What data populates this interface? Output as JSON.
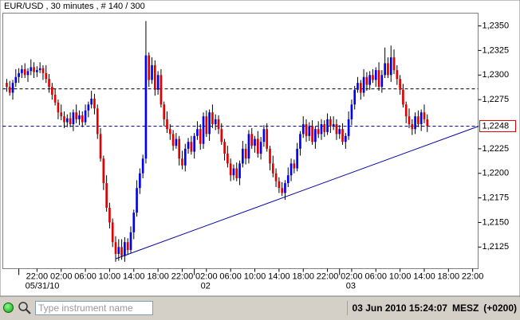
{
  "chart_data": {
    "type": "candlestick",
    "title": "EUR/USD , 30 minutes , # 140 / 300",
    "up_color": "#0000ee",
    "down_color": "#e00000",
    "wick_color": "#000000",
    "xlim": [
      -1.3,
      155.8
    ],
    "ylim": [
      1.2103,
      1.2363
    ],
    "yticks": [
      {
        "value": 1.2125,
        "label": "1,2125"
      },
      {
        "value": 1.215,
        "label": "1,2150"
      },
      {
        "value": 1.2175,
        "label": "1,2175"
      },
      {
        "value": 1.22,
        "label": "1,2200"
      },
      {
        "value": 1.2225,
        "label": "1,2225"
      },
      {
        "value": 1.2275,
        "label": "1,2275"
      },
      {
        "value": 1.23,
        "label": "1,2300"
      },
      {
        "value": 1.2325,
        "label": "1,2325"
      },
      {
        "value": 1.235,
        "label": "1,2350"
      }
    ],
    "xticks": [
      {
        "value": 10,
        "label": "22:00"
      },
      {
        "value": 18,
        "label": "02:00"
      },
      {
        "value": 26,
        "label": "06:00"
      },
      {
        "value": 34,
        "label": "10:00"
      },
      {
        "value": 42,
        "label": "14:00"
      },
      {
        "value": 50,
        "label": "18:00"
      },
      {
        "value": 58,
        "label": "22:00"
      },
      {
        "value": 66,
        "label": "02:00"
      },
      {
        "value": 74,
        "label": "06:00"
      },
      {
        "value": 82,
        "label": "10:00"
      },
      {
        "value": 90,
        "label": "14:00"
      },
      {
        "value": 98,
        "label": "18:00"
      },
      {
        "value": 106,
        "label": "22:00"
      },
      {
        "value": 114,
        "label": "02:00"
      },
      {
        "value": 122,
        "label": "06:00"
      },
      {
        "value": 130,
        "label": "10:00"
      },
      {
        "value": 138,
        "label": "14:00"
      },
      {
        "value": 146,
        "label": "18:00"
      },
      {
        "value": 154,
        "label": "22:00"
      }
    ],
    "date_ticks": [
      {
        "value": 4,
        "label": "05/31/10"
      },
      {
        "value": 62,
        "label": "02"
      },
      {
        "value": 110,
        "label": "03"
      }
    ],
    "hlines": [
      {
        "value": 1.2286,
        "color": "#000000"
      },
      {
        "value": 1.2248,
        "color": "#0000aa"
      }
    ],
    "last_price": {
      "value": 1.2248,
      "label": "1,2248"
    },
    "trendline": {
      "x": [
        36,
        156
      ],
      "y": [
        1.2113,
        1.2248
      ],
      "color": "#0000aa"
    },
    "ohlc": [
      [
        1.2292,
        1.2296,
        1.2283,
        1.2288
      ],
      [
        1.2288,
        1.2294,
        1.2279,
        1.2282
      ],
      [
        1.2282,
        1.2295,
        1.2275,
        1.2292
      ],
      [
        1.2292,
        1.2306,
        1.2288,
        1.2298
      ],
      [
        1.2298,
        1.2307,
        1.2292,
        1.2302
      ],
      [
        1.2302,
        1.231,
        1.2297,
        1.2306
      ],
      [
        1.2306,
        1.2312,
        1.2297,
        1.23
      ],
      [
        1.23,
        1.2307,
        1.2293,
        1.2304
      ],
      [
        1.2304,
        1.2316,
        1.23,
        1.2308
      ],
      [
        1.2308,
        1.2313,
        1.2297,
        1.2303
      ],
      [
        1.2303,
        1.2309,
        1.2298,
        1.2305
      ],
      [
        1.2305,
        1.2313,
        1.2302,
        1.2307
      ],
      [
        1.2307,
        1.231,
        1.2295,
        1.2302
      ],
      [
        1.2302,
        1.231,
        1.2292,
        1.2296
      ],
      [
        1.2296,
        1.2301,
        1.2282,
        1.2288
      ],
      [
        1.2288,
        1.2292,
        1.2275,
        1.228
      ],
      [
        1.228,
        1.2286,
        1.2269,
        1.2272
      ],
      [
        1.2272,
        1.2275,
        1.2255,
        1.2262
      ],
      [
        1.2262,
        1.227,
        1.2254,
        1.2258
      ],
      [
        1.2258,
        1.2263,
        1.2246,
        1.2252
      ],
      [
        1.2252,
        1.226,
        1.2247,
        1.2256
      ],
      [
        1.2256,
        1.2262,
        1.2247,
        1.225
      ],
      [
        1.225,
        1.2265,
        1.2243,
        1.2262
      ],
      [
        1.2262,
        1.227,
        1.2251,
        1.2255
      ],
      [
        1.2255,
        1.2264,
        1.2249,
        1.2259
      ],
      [
        1.2259,
        1.2263,
        1.2247,
        1.2252
      ],
      [
        1.2252,
        1.227,
        1.2249,
        1.2264
      ],
      [
        1.2264,
        1.2273,
        1.2257,
        1.227
      ],
      [
        1.227,
        1.2284,
        1.2266,
        1.2276
      ],
      [
        1.2276,
        1.2281,
        1.226,
        1.2266
      ],
      [
        1.2266,
        1.227,
        1.2235,
        1.224
      ],
      [
        1.224,
        1.2246,
        1.2212,
        1.2215
      ],
      [
        1.2215,
        1.2218,
        1.2183,
        1.219
      ],
      [
        1.219,
        1.2198,
        1.2161,
        1.2165
      ],
      [
        1.2165,
        1.217,
        1.2144,
        1.215
      ],
      [
        1.215,
        1.2154,
        1.2125,
        1.213
      ],
      [
        1.213,
        1.2136,
        1.211,
        1.2118
      ],
      [
        1.2118,
        1.2133,
        1.2111,
        1.2125
      ],
      [
        1.2125,
        1.2133,
        1.2112,
        1.2116
      ],
      [
        1.2116,
        1.2135,
        1.211,
        1.213
      ],
      [
        1.213,
        1.2134,
        1.2117,
        1.2122
      ],
      [
        1.2122,
        1.2146,
        1.2119,
        1.214
      ],
      [
        1.214,
        1.2163,
        1.2133,
        1.216
      ],
      [
        1.216,
        1.2193,
        1.2156,
        1.2185
      ],
      [
        1.2185,
        1.2205,
        1.2179,
        1.22
      ],
      [
        1.22,
        1.2219,
        1.2195,
        1.2215
      ],
      [
        1.2215,
        1.2355,
        1.221,
        1.232
      ],
      [
        1.232,
        1.2323,
        1.2288,
        1.2295
      ],
      [
        1.2295,
        1.2318,
        1.2291,
        1.231
      ],
      [
        1.231,
        1.2315,
        1.2279,
        1.2285
      ],
      [
        1.2285,
        1.2304,
        1.228,
        1.23
      ],
      [
        1.23,
        1.2306,
        1.2267,
        1.227
      ],
      [
        1.227,
        1.2273,
        1.2248,
        1.2255
      ],
      [
        1.2255,
        1.2263,
        1.2241,
        1.2245
      ],
      [
        1.2245,
        1.225,
        1.2234,
        1.224
      ],
      [
        1.224,
        1.2244,
        1.2223,
        1.2228
      ],
      [
        1.2228,
        1.2241,
        1.2225,
        1.2235
      ],
      [
        1.2235,
        1.2238,
        1.2208,
        1.2215
      ],
      [
        1.2215,
        1.2223,
        1.2204,
        1.2208
      ],
      [
        1.2208,
        1.223,
        1.2202,
        1.2225
      ],
      [
        1.2225,
        1.2236,
        1.222,
        1.2232
      ],
      [
        1.2232,
        1.2238,
        1.2219,
        1.2222
      ],
      [
        1.2222,
        1.2241,
        1.2215,
        1.2238
      ],
      [
        1.2238,
        1.2253,
        1.2234,
        1.2245
      ],
      [
        1.2245,
        1.225,
        1.2224,
        1.223
      ],
      [
        1.223,
        1.2262,
        1.2225,
        1.2258
      ],
      [
        1.2258,
        1.2264,
        1.2237,
        1.224
      ],
      [
        1.224,
        1.2265,
        1.2233,
        1.2262
      ],
      [
        1.2262,
        1.227,
        1.2246,
        1.225
      ],
      [
        1.225,
        1.226,
        1.2244,
        1.2255
      ],
      [
        1.2255,
        1.2259,
        1.224,
        1.2245
      ],
      [
        1.2245,
        1.2251,
        1.2229,
        1.2232
      ],
      [
        1.2232,
        1.2235,
        1.2213,
        1.222
      ],
      [
        1.222,
        1.2228,
        1.2206,
        1.221
      ],
      [
        1.221,
        1.2215,
        1.2192,
        1.2198
      ],
      [
        1.2198,
        1.2209,
        1.2193,
        1.2205
      ],
      [
        1.2205,
        1.2211,
        1.2192,
        1.2195
      ],
      [
        1.2195,
        1.2213,
        1.2188,
        1.221
      ],
      [
        1.221,
        1.2233,
        1.2206,
        1.2225
      ],
      [
        1.2225,
        1.223,
        1.2209,
        1.2215
      ],
      [
        1.2215,
        1.2244,
        1.221,
        1.224
      ],
      [
        1.224,
        1.2246,
        1.2225,
        1.2228
      ],
      [
        1.2228,
        1.2238,
        1.2221,
        1.2235
      ],
      [
        1.2235,
        1.2243,
        1.2216,
        1.222
      ],
      [
        1.222,
        1.2237,
        1.2214,
        1.2232
      ],
      [
        1.2232,
        1.2249,
        1.2227,
        1.2245
      ],
      [
        1.2245,
        1.2251,
        1.2222,
        1.2225
      ],
      [
        1.2225,
        1.2228,
        1.2203,
        1.221
      ],
      [
        1.221,
        1.2218,
        1.2196,
        1.22
      ],
      [
        1.22,
        1.2205,
        1.2186,
        1.2192
      ],
      [
        1.2192,
        1.2196,
        1.218,
        1.2185
      ],
      [
        1.2185,
        1.2191,
        1.2177,
        1.218
      ],
      [
        1.218,
        1.2193,
        1.2173,
        1.219
      ],
      [
        1.219,
        1.2206,
        1.2186,
        1.2198
      ],
      [
        1.2198,
        1.2215,
        1.2192,
        1.221
      ],
      [
        1.221,
        1.2214,
        1.22,
        1.2205
      ],
      [
        1.2205,
        1.2231,
        1.2202,
        1.2225
      ],
      [
        1.2225,
        1.2243,
        1.2218,
        1.224
      ],
      [
        1.224,
        1.2258,
        1.2236,
        1.225
      ],
      [
        1.225,
        1.2255,
        1.2232,
        1.2238
      ],
      [
        1.2238,
        1.2252,
        1.2233,
        1.2248
      ],
      [
        1.2248,
        1.2254,
        1.2229,
        1.2232
      ],
      [
        1.2232,
        1.2248,
        1.2225,
        1.2245
      ],
      [
        1.2245,
        1.2253,
        1.2236,
        1.224
      ],
      [
        1.224,
        1.2255,
        1.2234,
        1.225
      ],
      [
        1.225,
        1.2254,
        1.2237,
        1.2242
      ],
      [
        1.2242,
        1.2261,
        1.2239,
        1.2255
      ],
      [
        1.2255,
        1.2258,
        1.2241,
        1.2248
      ],
      [
        1.2248,
        1.2258,
        1.2244,
        1.225
      ],
      [
        1.225,
        1.2255,
        1.2234,
        1.224
      ],
      [
        1.224,
        1.2249,
        1.2235,
        1.2245
      ],
      [
        1.2245,
        1.2251,
        1.2229,
        1.2232
      ],
      [
        1.2232,
        1.2241,
        1.2225,
        1.2238
      ],
      [
        1.2238,
        1.2263,
        1.2234,
        1.2255
      ],
      [
        1.2255,
        1.2275,
        1.2249,
        1.227
      ],
      [
        1.227,
        1.2289,
        1.2265,
        1.2285
      ],
      [
        1.2285,
        1.2298,
        1.2282,
        1.2292
      ],
      [
        1.2292,
        1.2295,
        1.2275,
        1.2282
      ],
      [
        1.2282,
        1.2306,
        1.2278,
        1.2298
      ],
      [
        1.2298,
        1.2303,
        1.2284,
        1.229
      ],
      [
        1.229,
        1.2304,
        1.2285,
        1.23
      ],
      [
        1.23,
        1.2306,
        1.2292,
        1.2295
      ],
      [
        1.2295,
        1.2308,
        1.2288,
        1.2305
      ],
      [
        1.2305,
        1.2313,
        1.2284,
        1.2288
      ],
      [
        1.2288,
        1.2305,
        1.2282,
        1.23
      ],
      [
        1.23,
        1.2328,
        1.2297,
        1.2312
      ],
      [
        1.2312,
        1.2318,
        1.2297,
        1.23
      ],
      [
        1.23,
        1.233,
        1.2293,
        1.2318
      ],
      [
        1.2318,
        1.2326,
        1.2301,
        1.2305
      ],
      [
        1.2305,
        1.231,
        1.229,
        1.2296
      ],
      [
        1.2296,
        1.23,
        1.228,
        1.2285
      ],
      [
        1.2285,
        1.2291,
        1.2267,
        1.227
      ],
      [
        1.227,
        1.2273,
        1.2251,
        1.2258
      ],
      [
        1.2258,
        1.2266,
        1.2246,
        1.225
      ],
      [
        1.225,
        1.2255,
        1.2239,
        1.2245
      ],
      [
        1.2245,
        1.2262,
        1.224,
        1.2258
      ],
      [
        1.2258,
        1.2264,
        1.2247,
        1.225
      ],
      [
        1.225,
        1.2265,
        1.2243,
        1.2262
      ],
      [
        1.2262,
        1.227,
        1.2251,
        1.2255
      ],
      [
        1.2255,
        1.226,
        1.2242,
        1.2248
      ]
    ]
  },
  "status_bar": {
    "search_placeholder": "Type instrument name",
    "datetime": "03 Jun 2010 15:24:07",
    "timezone": "MESZ",
    "offset": "(+0200)"
  }
}
